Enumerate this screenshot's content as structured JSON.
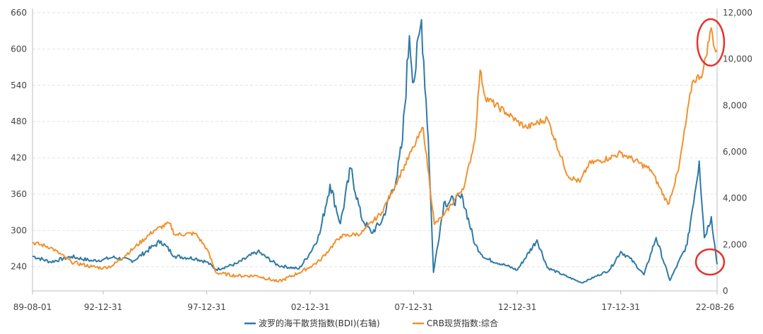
{
  "chart_data": {
    "type": "line",
    "x_ticks": [
      "89-08-01",
      "92-12-31",
      "97-12-31",
      "02-12-31",
      "07-12-31",
      "12-12-31",
      "17-12-31",
      "22-08-26"
    ],
    "left_axis": {
      "ticks": [
        240,
        300,
        360,
        420,
        480,
        540,
        600,
        660
      ],
      "range": [
        200,
        660
      ]
    },
    "right_axis": {
      "ticks": [
        "0",
        "2,000",
        "4,000",
        "6,000",
        "8,000",
        "10,000",
        "12,000"
      ],
      "range": [
        0,
        12000
      ]
    },
    "grid": "horizontal-dashed",
    "legend_position": "bottom-center",
    "series": [
      {
        "name": "波罗的海干散货指数(BDI)(右轴)",
        "axis": "right",
        "color": "#2e7aa6",
        "points": [
          [
            "89-08-01",
            1500
          ],
          [
            "90-06",
            1250
          ],
          [
            "91-06",
            1480
          ],
          [
            "92-06",
            1300
          ],
          [
            "92-12-31",
            1350
          ],
          [
            "93-06",
            1450
          ],
          [
            "94-06",
            1300
          ],
          [
            "95-06",
            1950
          ],
          [
            "95-10",
            2150
          ],
          [
            "96-06",
            1500
          ],
          [
            "97-06",
            1400
          ],
          [
            "97-12-31",
            1250
          ],
          [
            "98-06",
            920
          ],
          [
            "99-06",
            1180
          ],
          [
            "00-06",
            1700
          ],
          [
            "01-06",
            1100
          ],
          [
            "02-06",
            950
          ],
          [
            "02-12-31",
            1650
          ],
          [
            "03-06",
            2450
          ],
          [
            "03-12",
            4600
          ],
          [
            "04-06",
            2900
          ],
          [
            "04-12",
            5300
          ],
          [
            "05-06",
            3200
          ],
          [
            "05-12",
            2500
          ],
          [
            "06-06",
            3000
          ],
          [
            "07-03",
            5000
          ],
          [
            "07-06",
            6500
          ],
          [
            "07-10",
            11000
          ],
          [
            "07-12-31",
            9000
          ],
          [
            "08-05",
            11700
          ],
          [
            "08-09",
            6500
          ],
          [
            "08-12",
            800
          ],
          [
            "09-06",
            3800
          ],
          [
            "10-05",
            4000
          ],
          [
            "10-12",
            2000
          ],
          [
            "11-06",
            1400
          ],
          [
            "12-06",
            1100
          ],
          [
            "12-12-31",
            900
          ],
          [
            "13-12",
            2200
          ],
          [
            "14-06",
            1000
          ],
          [
            "15-06",
            600
          ],
          [
            "16-02",
            350
          ],
          [
            "17-06",
            900
          ],
          [
            "17-12-31",
            1700
          ],
          [
            "18-06",
            1400
          ],
          [
            "19-02",
            700
          ],
          [
            "19-09",
            2300
          ],
          [
            "20-05",
            450
          ],
          [
            "21-03",
            2000
          ],
          [
            "21-10",
            5600
          ],
          [
            "22-01",
            2300
          ],
          [
            "22-05",
            3200
          ],
          [
            "22-08-26",
            1150
          ]
        ]
      },
      {
        "name": "CRB现货指数:综合",
        "axis": "left",
        "color": "#f0922e",
        "points": [
          [
            "89-08-01",
            280
          ],
          [
            "90-06",
            272
          ],
          [
            "91-06",
            248
          ],
          [
            "92-06",
            240
          ],
          [
            "92-12-31",
            238
          ],
          [
            "93-06",
            242
          ],
          [
            "94-06",
            270
          ],
          [
            "95-06",
            300
          ],
          [
            "96-03",
            312
          ],
          [
            "96-06",
            293
          ],
          [
            "97-06",
            295
          ],
          [
            "97-12-31",
            270
          ],
          [
            "98-06",
            230
          ],
          [
            "99-06",
            225
          ],
          [
            "00-06",
            225
          ],
          [
            "01-06",
            215
          ],
          [
            "02-06",
            230
          ],
          [
            "02-12-31",
            240
          ],
          [
            "03-06",
            250
          ],
          [
            "03-12",
            270
          ],
          [
            "04-06",
            290
          ],
          [
            "05-06",
            295
          ],
          [
            "06-06",
            330
          ],
          [
            "07-06",
            400
          ],
          [
            "07-12-31",
            438
          ],
          [
            "08-06",
            470
          ],
          [
            "08-12-31",
            310
          ],
          [
            "09-06",
            325
          ],
          [
            "10-06",
            375
          ],
          [
            "10-12",
            450
          ],
          [
            "11-03",
            565
          ],
          [
            "11-06",
            520
          ],
          [
            "12-06",
            495
          ],
          [
            "12-12-31",
            480
          ],
          [
            "13-06",
            470
          ],
          [
            "14-06",
            485
          ],
          [
            "15-06",
            390
          ],
          [
            "16-01",
            380
          ],
          [
            "16-06",
            410
          ],
          [
            "17-06",
            420
          ],
          [
            "17-12-31",
            428
          ],
          [
            "18-06",
            420
          ],
          [
            "19-06",
            400
          ],
          [
            "20-04",
            343
          ],
          [
            "20-10",
            400
          ],
          [
            "21-06",
            545
          ],
          [
            "21-12",
            560
          ],
          [
            "22-05",
            635
          ],
          [
            "22-07",
            600
          ],
          [
            "22-08-26",
            598
          ]
        ]
      }
    ]
  }
}
